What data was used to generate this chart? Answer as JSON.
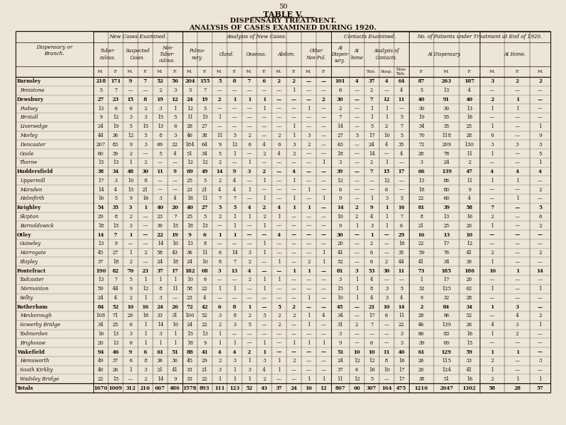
{
  "page_number": "50",
  "title1": "TABLE V.",
  "title2": "DISPENSARY TREATMENT.",
  "title3": "ANALYSIS OF CASES EXAMINED DURING 1920.",
  "bg_color": "#ede5d5",
  "rows": [
    [
      "Barnsley",
      "218",
      "171",
      "9",
      "7",
      "52",
      "56",
      "204",
      "155",
      "5",
      "8",
      "7",
      "6",
      "2",
      "2",
      "—",
      "—",
      "101",
      "4",
      "37",
      "4",
      "64",
      "87",
      "263",
      "187",
      "3",
      "2",
      "2"
    ],
    [
      "Penistone",
      "5",
      "7",
      "—",
      "—",
      "2",
      "3",
      "5",
      "7",
      "—",
      "—",
      "—",
      "—",
      "—",
      "1",
      "—",
      "—",
      "6",
      "—",
      "2",
      "—",
      "4",
      "5",
      "13",
      "4",
      "—",
      "—",
      "—"
    ],
    [
      "Dewsbury",
      "27",
      "23",
      "15",
      "8",
      "19",
      "12",
      "24",
      "19",
      "2",
      "1",
      "1",
      "1",
      "—",
      "—",
      "—",
      "2",
      "30",
      "—",
      "7",
      "12",
      "11",
      "40",
      "91",
      "40",
      "2",
      "1",
      "—"
    ],
    [
      "Pudsey",
      "13",
      "6",
      "6",
      "2",
      "3",
      "1",
      "12",
      "5",
      "—",
      "—",
      "—",
      "1",
      "—",
      "—",
      "1",
      "—",
      "2",
      "—",
      "1",
      "1",
      "—",
      "30",
      "30",
      "13",
      "1",
      "1",
      "—"
    ],
    [
      "Birstall",
      "9",
      "12",
      "3",
      "3",
      "15",
      "5",
      "11",
      "15",
      "1",
      "—",
      "—",
      "—",
      "—",
      "—",
      "—",
      "—",
      "7",
      "—",
      "1",
      "1",
      "5",
      "19",
      "55",
      "16",
      "—",
      "—",
      "—"
    ],
    [
      "Liversedge",
      "24",
      "19",
      "5",
      "15",
      "13",
      "6",
      "28",
      "27",
      "—",
      "—",
      "—",
      "—",
      "—",
      "1",
      "—",
      "—",
      "14",
      "—",
      "5",
      "2",
      "7",
      "34",
      "35",
      "25",
      "1",
      "—",
      "1"
    ],
    [
      "Morley",
      "44",
      "36",
      "12",
      "5",
      "8",
      "3",
      "46",
      "38",
      "11",
      "5",
      "2",
      "—",
      "2",
      "1",
      "3",
      "—",
      "27",
      "5",
      "17",
      "10",
      "5",
      "70",
      "118",
      "28",
      "6",
      "—",
      "9"
    ],
    [
      "Doncaster",
      "207",
      "83",
      "9",
      "3",
      "69",
      "22",
      "184",
      "64",
      "9",
      "12",
      "6",
      "4",
      "6",
      "3",
      "2",
      "—",
      "63",
      "—",
      "24",
      "4",
      "35",
      "72",
      "209",
      "130",
      "3",
      "3",
      "3"
    ],
    [
      "Goole",
      "60",
      "39",
      "2",
      "—",
      "5",
      "4",
      "51",
      "34",
      "5",
      "1",
      "—",
      "2",
      "4",
      "2",
      "—",
      "—",
      "18",
      "—",
      "14",
      "—",
      "4",
      "28",
      "78",
      "11",
      "1",
      "—",
      "5"
    ],
    [
      "Thorne",
      "15",
      "13",
      "1",
      "2",
      "—",
      "—",
      "12",
      "12",
      "2",
      "—",
      "1",
      "—",
      "—",
      "—",
      "—",
      "1",
      "3",
      "—",
      "2",
      "1",
      "—",
      "3",
      "24",
      "2",
      "—",
      "—",
      "1"
    ],
    [
      "Huddersfield",
      "38",
      "34",
      "48",
      "30",
      "11",
      "9",
      "69",
      "49",
      "14",
      "9",
      "3",
      "2",
      "—",
      "4",
      "—",
      "—",
      "39",
      "—",
      "7",
      "15",
      "17",
      "66",
      "139",
      "47",
      "4",
      "4",
      "4"
    ],
    [
      "Uppermill",
      "17",
      "3",
      "10",
      "8",
      "—",
      "—",
      "25",
      "5",
      "2",
      "4",
      "—",
      "1",
      "—",
      "1",
      "—",
      "—",
      "12",
      "—",
      "—",
      "12",
      "—",
      "13",
      "86",
      "11",
      "1",
      "1",
      "—"
    ],
    [
      "Marsden",
      "14",
      "4",
      "15",
      "21",
      "—",
      "—",
      "23",
      "21",
      "4",
      "4",
      "1",
      "—",
      "—",
      "—",
      "1",
      "—",
      "6",
      "—",
      "—",
      "6",
      "—",
      "18",
      "80",
      "9",
      "—",
      "—",
      "2"
    ],
    [
      "Holmfirth",
      "16",
      "5",
      "9",
      "16",
      "3",
      "4",
      "18",
      "11",
      "7",
      "7",
      "—",
      "1",
      "—",
      "1",
      "—",
      "1",
      "9",
      "—",
      "1",
      "3",
      "5",
      "22",
      "60",
      "4",
      "—",
      "1",
      "—"
    ],
    [
      "Keighley",
      "54",
      "35",
      "3",
      "1",
      "40",
      "20",
      "40",
      "27",
      "5",
      "5",
      "4",
      "2",
      "4",
      "1",
      "1",
      "—",
      "14",
      "2",
      "9",
      "1",
      "16",
      "81",
      "39",
      "58",
      "7",
      "—",
      "5"
    ],
    [
      "Skipton",
      "29",
      "8",
      "2",
      "—",
      "23",
      "7",
      "25",
      "5",
      "2",
      "1",
      "1",
      "2",
      "1",
      "—",
      "—",
      "—",
      "10",
      "2",
      "4",
      "1",
      "7",
      "8",
      "13",
      "16",
      "2",
      "—",
      "6"
    ],
    [
      "Barnoldswick",
      "18",
      "15",
      "3",
      "—",
      "30",
      "15",
      "18",
      "13",
      "—",
      "1",
      "—",
      "1",
      "—",
      "—",
      "—",
      "—",
      "9",
      "1",
      "3",
      "1",
      "6",
      "21",
      "25",
      "20",
      "1",
      "—",
      "2"
    ],
    [
      "Otley",
      "14",
      "7",
      "1",
      "—",
      "22",
      "19",
      "9",
      "6",
      "1",
      "1",
      "—",
      "—",
      "4",
      "—",
      "—",
      "—",
      "30",
      "—",
      "1",
      "—",
      "29",
      "16",
      "13",
      "10",
      "—",
      "—",
      "—"
    ],
    [
      "Guiseley",
      "13",
      "9",
      "—",
      "—",
      "14",
      "10",
      "13",
      "8",
      "—",
      "—",
      "—",
      "1",
      "—",
      "—",
      "—",
      "—",
      "20",
      "—",
      "2",
      "—",
      "18",
      "22",
      "17",
      "12",
      "—",
      "—",
      "—"
    ],
    [
      "Harrogate",
      "45",
      "27",
      "1",
      "2",
      "58",
      "43",
      "36",
      "11",
      "6",
      "14",
      "3",
      "1",
      "—",
      "—",
      "—",
      "1",
      "41",
      "—",
      "6",
      "—",
      "35",
      "59",
      "76",
      "41",
      "2",
      "—",
      "2"
    ],
    [
      "Shipley",
      "37",
      "18",
      "2",
      "—",
      "24",
      "18",
      "24",
      "10",
      "8",
      "7",
      "2",
      "—",
      "1",
      "—",
      "2",
      "1",
      "52",
      "—",
      "6",
      "2",
      "44",
      "41",
      "34",
      "30",
      "1",
      "—",
      "—"
    ],
    [
      "Pontefract",
      "190",
      "82",
      "70",
      "23",
      "37",
      "17",
      "182",
      "68",
      "3",
      "13",
      "4",
      "—",
      "—",
      "1",
      "1",
      "—",
      "81",
      "3",
      "53",
      "30",
      "11",
      "73",
      "185",
      "186",
      "10",
      "1",
      "14"
    ],
    [
      "Tadcaster",
      "13",
      "7",
      "5",
      "1",
      "1",
      "1",
      "10",
      "6",
      "—",
      "—",
      "2",
      "1",
      "1",
      "—",
      "—",
      "—",
      "3",
      "1",
      "4",
      "—",
      "—",
      "1",
      "17",
      "20",
      "—",
      "—",
      "—"
    ],
    [
      "Normanton",
      "59",
      "44",
      "9",
      "12",
      "8",
      "11",
      "58",
      "22",
      "1",
      "1",
      "—",
      "1",
      "—",
      "—",
      "—",
      "—",
      "15",
      "1",
      "8",
      "3",
      "5",
      "32",
      "125",
      "62",
      "1",
      "—",
      "1"
    ],
    [
      "Selby",
      "24",
      "4",
      "2",
      "1",
      "3",
      "—",
      "23",
      "4",
      "—",
      "—",
      "—",
      "—",
      "—",
      "—",
      "1",
      "—",
      "10",
      "1",
      "4",
      "3",
      "4",
      "9",
      "32",
      "28",
      "—",
      "—",
      "—"
    ],
    [
      "Rotherham",
      "84",
      "52",
      "10",
      "16",
      "24",
      "26",
      "72",
      "42",
      "6",
      "8",
      "1",
      "—",
      "5",
      "2",
      "—",
      "—",
      "45",
      "—",
      "21",
      "10",
      "14",
      "2",
      "84",
      "34",
      "1",
      "3",
      "—"
    ],
    [
      "Mexborough",
      "108",
      "71",
      "29",
      "18",
      "33",
      "31",
      "100",
      "52",
      "3",
      "8",
      "2",
      "5",
      "2",
      "2",
      "1",
      "4",
      "34",
      "—",
      "17",
      "6",
      "11",
      "28",
      "96",
      "52",
      "—",
      "4",
      "2"
    ],
    [
      "Sowerby Bridge",
      "34",
      "25",
      "6",
      "1",
      "14",
      "10",
      "24",
      "22",
      "2",
      "3",
      "5",
      "—",
      "2",
      "—",
      "1",
      "—",
      "31",
      "2",
      "7",
      "—",
      "22",
      "46",
      "139",
      "26",
      "4",
      "3",
      "1"
    ],
    [
      "Todmorden",
      "16",
      "13",
      "3",
      "1",
      "3",
      "1",
      "15",
      "13",
      "1",
      "—",
      "—",
      "—",
      "—",
      "—",
      "—",
      "—",
      "3",
      "—",
      "—",
      "—",
      "3",
      "66",
      "83",
      "16",
      "1",
      "2",
      "—"
    ],
    [
      "Brighouse",
      "20",
      "13",
      "6",
      "1",
      "1",
      "1",
      "18",
      "9",
      "1",
      "1",
      "—",
      "1",
      "—",
      "1",
      "1",
      "1",
      "9",
      "—",
      "6",
      "—",
      "3",
      "39",
      "69",
      "15",
      "—",
      "—",
      "—"
    ],
    [
      "Wakefield",
      "94",
      "46",
      "9",
      "6",
      "61",
      "51",
      "88",
      "41",
      "4",
      "4",
      "2",
      "1",
      "—",
      "—",
      "—",
      "—",
      "51",
      "10",
      "10",
      "11",
      "40",
      "61",
      "129",
      "59",
      "1",
      "1",
      "—"
    ],
    [
      "Hemsworth",
      "49",
      "37",
      "6",
      "8",
      "36",
      "30",
      "45",
      "29",
      "2",
      "3",
      "1",
      "3",
      "1",
      "2",
      "—",
      "—",
      "24",
      "12",
      "12",
      "8",
      "16",
      "26",
      "115",
      "33",
      "2",
      "—",
      "3"
    ],
    [
      "South Kirkby",
      "40",
      "26",
      "1",
      "3",
      "21",
      "41",
      "33",
      "21",
      "3",
      "1",
      "3",
      "4",
      "1",
      "—",
      "—",
      "—",
      "37",
      "6",
      "16",
      "10",
      "17",
      "20",
      "124",
      "41",
      "1",
      "—",
      "—"
    ],
    [
      "Wadsley Bridge",
      "22",
      "15",
      "—",
      "2",
      "14",
      "9",
      "33",
      "22",
      "1",
      "1",
      "1",
      "2",
      "—",
      "—",
      "1",
      "1",
      "11",
      "12",
      "5",
      "—",
      "17",
      "38",
      "51",
      "16",
      "2",
      "1",
      "1"
    ],
    [
      "Totals",
      "1670",
      "1009",
      "312",
      "216",
      "667",
      "486",
      "1578",
      "893",
      "111",
      "123",
      "52",
      "43",
      "37",
      "24",
      "16",
      "12",
      "867",
      "60",
      "307",
      "164",
      "475",
      "1216",
      "2647",
      "1302",
      "58",
      "28",
      "57"
    ]
  ],
  "bold_rows": [
    "Barnsley",
    "Dewsbury",
    "Huddersfield",
    "Keighley",
    "Otley",
    "Pontefract",
    "Rotherham",
    "Wakefield",
    "Totals"
  ]
}
